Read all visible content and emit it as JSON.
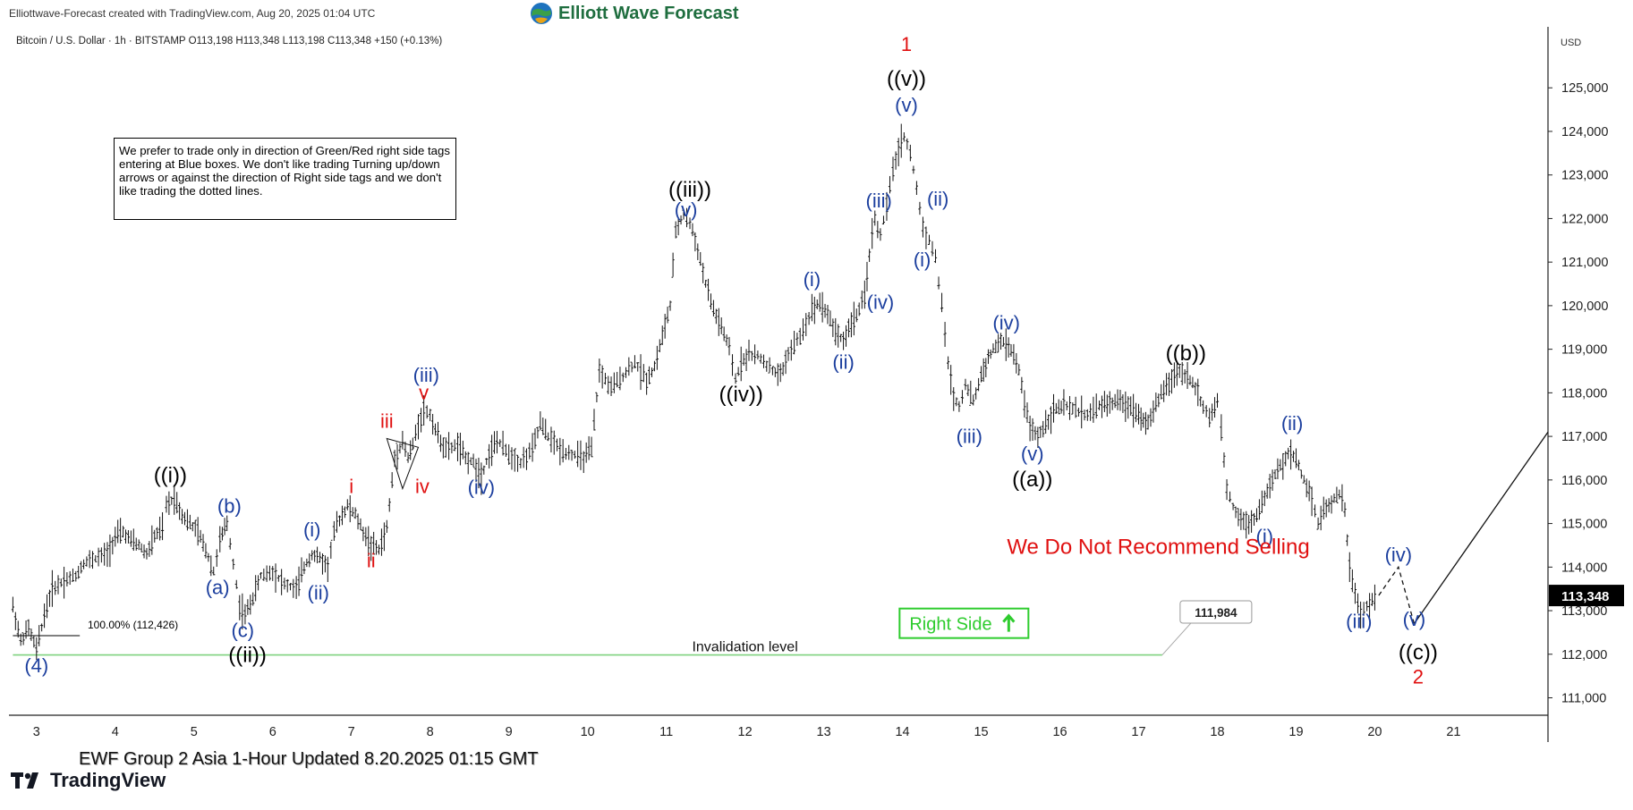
{
  "header": {
    "credit": "Elliottwave-Forecast created with TradingView.com, Aug 20, 2025 01:04 UTC",
    "brand": "Elliott Wave Forecast",
    "symbol_line": "Bitcoin / U.S. Dollar · 1h · BITSTAMP  O113,198  H113,348  L113,198  C113,348  +150 (+0.13%)",
    "currency": "USD"
  },
  "note": "We prefer to trade only in direction of Green/Red right side tags entering at Blue boxes. We don't like trading Turning up/down arrows or against the direction of Right side tags and we don't like trading the dotted lines.",
  "footer": {
    "caption": "EWF Group 2 Asia 1-Hour Updated 8.20.2025 01:15 GMT",
    "platform": "TradingView"
  },
  "colors": {
    "blue_label": "#1c3f9e",
    "red_label": "#e01010",
    "black_label": "#000000",
    "invalidation_line": "#7fd27f",
    "right_side_tag": "#2ecc2e",
    "price_tag_bg": "#000000",
    "brand_green": "#1f6e3f"
  },
  "chart_data": {
    "type": "line",
    "x_ticks": [
      "3",
      "4",
      "5",
      "6",
      "7",
      "8",
      "9",
      "10",
      "11",
      "12",
      "13",
      "14",
      "15",
      "16",
      "17",
      "18",
      "19",
      "20",
      "21"
    ],
    "y_ticks": [
      "111,000",
      "112,000",
      "113,000",
      "114,000",
      "115,000",
      "116,000",
      "117,000",
      "118,000",
      "119,000",
      "120,000",
      "121,000",
      "122,000",
      "123,000",
      "124,000",
      "125,000"
    ],
    "ylim": [
      110600,
      126400
    ],
    "xlim": [
      2.65,
      22.2
    ],
    "last_price": 113348,
    "last_price_label": "113,348",
    "price_path": [
      [
        2.7,
        113100
      ],
      [
        2.8,
        112300
      ],
      [
        2.9,
        112600
      ],
      [
        3.0,
        112100
      ],
      [
        3.1,
        112900
      ],
      [
        3.2,
        113500
      ],
      [
        3.35,
        113700
      ],
      [
        3.5,
        113800
      ],
      [
        3.6,
        114100
      ],
      [
        3.75,
        114200
      ],
      [
        3.9,
        114300
      ],
      [
        4.0,
        114700
      ],
      [
        4.1,
        114800
      ],
      [
        4.2,
        114600
      ],
      [
        4.3,
        114500
      ],
      [
        4.4,
        114300
      ],
      [
        4.5,
        114700
      ],
      [
        4.6,
        114900
      ],
      [
        4.65,
        115400
      ],
      [
        4.75,
        115600
      ],
      [
        4.85,
        115200
      ],
      [
        4.95,
        115000
      ],
      [
        5.05,
        114800
      ],
      [
        5.15,
        114400
      ],
      [
        5.25,
        113900
      ],
      [
        5.33,
        114600
      ],
      [
        5.42,
        115000
      ],
      [
        5.5,
        114100
      ],
      [
        5.58,
        113100
      ],
      [
        5.65,
        112900
      ],
      [
        5.75,
        113300
      ],
      [
        5.85,
        113800
      ],
      [
        6.0,
        113900
      ],
      [
        6.15,
        113600
      ],
      [
        6.3,
        113500
      ],
      [
        6.4,
        114000
      ],
      [
        6.5,
        114300
      ],
      [
        6.6,
        114200
      ],
      [
        6.7,
        114000
      ],
      [
        6.78,
        114800
      ],
      [
        6.85,
        115100
      ],
      [
        6.95,
        115400
      ],
      [
        7.05,
        115200
      ],
      [
        7.15,
        114800
      ],
      [
        7.25,
        114500
      ],
      [
        7.35,
        114400
      ],
      [
        7.45,
        114900
      ],
      [
        7.55,
        116500
      ],
      [
        7.65,
        116900
      ],
      [
        7.72,
        116500
      ],
      [
        7.78,
        116800
      ],
      [
        7.85,
        117300
      ],
      [
        7.92,
        117600
      ],
      [
        8.0,
        117500
      ],
      [
        8.1,
        117000
      ],
      [
        8.2,
        116700
      ],
      [
        8.35,
        116800
      ],
      [
        8.45,
        116500
      ],
      [
        8.55,
        116400
      ],
      [
        8.65,
        116100
      ],
      [
        8.75,
        116600
      ],
      [
        8.85,
        116900
      ],
      [
        9.0,
        116600
      ],
      [
        9.15,
        116400
      ],
      [
        9.3,
        116700
      ],
      [
        9.4,
        117300
      ],
      [
        9.5,
        117000
      ],
      [
        9.65,
        116700
      ],
      [
        9.8,
        116600
      ],
      [
        9.95,
        116500
      ],
      [
        10.05,
        116700
      ],
      [
        10.15,
        118500
      ],
      [
        10.3,
        118100
      ],
      [
        10.45,
        118400
      ],
      [
        10.6,
        118700
      ],
      [
        10.75,
        118300
      ],
      [
        10.85,
        118600
      ],
      [
        10.95,
        119300
      ],
      [
        11.05,
        120000
      ],
      [
        11.12,
        121700
      ],
      [
        11.22,
        122100
      ],
      [
        11.3,
        121900
      ],
      [
        11.4,
        121300
      ],
      [
        11.5,
        120500
      ],
      [
        11.6,
        119900
      ],
      [
        11.7,
        119500
      ],
      [
        11.8,
        119000
      ],
      [
        11.88,
        118300
      ],
      [
        11.95,
        118700
      ],
      [
        12.05,
        118900
      ],
      [
        12.2,
        118800
      ],
      [
        12.35,
        118500
      ],
      [
        12.45,
        118400
      ],
      [
        12.55,
        118900
      ],
      [
        12.7,
        119300
      ],
      [
        12.85,
        119900
      ],
      [
        12.95,
        120100
      ],
      [
        13.05,
        119800
      ],
      [
        13.15,
        119400
      ],
      [
        13.25,
        119200
      ],
      [
        13.35,
        119600
      ],
      [
        13.45,
        119900
      ],
      [
        13.52,
        120200
      ],
      [
        13.58,
        121200
      ],
      [
        13.65,
        122000
      ],
      [
        13.72,
        121600
      ],
      [
        13.8,
        122300
      ],
      [
        13.88,
        123100
      ],
      [
        13.95,
        123600
      ],
      [
        14.02,
        123900
      ],
      [
        14.1,
        123500
      ],
      [
        14.18,
        122700
      ],
      [
        14.26,
        121800
      ],
      [
        14.34,
        121500
      ],
      [
        14.42,
        121100
      ],
      [
        14.5,
        120000
      ],
      [
        14.58,
        118700
      ],
      [
        14.65,
        117900
      ],
      [
        14.72,
        117700
      ],
      [
        14.8,
        118200
      ],
      [
        14.9,
        117800
      ],
      [
        15.0,
        118400
      ],
      [
        15.12,
        118900
      ],
      [
        15.25,
        119200
      ],
      [
        15.38,
        119000
      ],
      [
        15.48,
        118500
      ],
      [
        15.55,
        117800
      ],
      [
        15.62,
        117200
      ],
      [
        15.72,
        117000
      ],
      [
        15.82,
        117300
      ],
      [
        15.92,
        117600
      ],
      [
        16.05,
        117700
      ],
      [
        16.2,
        117600
      ],
      [
        16.35,
        117500
      ],
      [
        16.5,
        117700
      ],
      [
        16.7,
        117800
      ],
      [
        16.9,
        117700
      ],
      [
        17.0,
        117500
      ],
      [
        17.12,
        117300
      ],
      [
        17.22,
        117700
      ],
      [
        17.32,
        118100
      ],
      [
        17.42,
        118300
      ],
      [
        17.52,
        118500
      ],
      [
        17.62,
        118400
      ],
      [
        17.72,
        118100
      ],
      [
        17.82,
        117700
      ],
      [
        17.9,
        117400
      ],
      [
        18.0,
        117800
      ],
      [
        18.05,
        117100
      ],
      [
        18.12,
        115800
      ],
      [
        18.2,
        115400
      ],
      [
        18.3,
        115100
      ],
      [
        18.4,
        115000
      ],
      [
        18.5,
        115200
      ],
      [
        18.6,
        115600
      ],
      [
        18.7,
        116000
      ],
      [
        18.8,
        116300
      ],
      [
        18.9,
        116600
      ],
      [
        19.0,
        116500
      ],
      [
        19.1,
        116000
      ],
      [
        19.2,
        115600
      ],
      [
        19.28,
        115000
      ],
      [
        19.35,
        115300
      ],
      [
        19.45,
        115500
      ],
      [
        19.55,
        115700
      ],
      [
        19.62,
        115300
      ],
      [
        19.68,
        114000
      ],
      [
        19.75,
        113400
      ],
      [
        19.82,
        112900
      ],
      [
        19.9,
        113100
      ],
      [
        20.0,
        113300
      ],
      [
        20.05,
        113348
      ]
    ],
    "projection": {
      "dashed": [
        [
          20.05,
          113350
        ],
        [
          20.3,
          114000
        ],
        [
          20.5,
          112700
        ]
      ],
      "solid": [
        [
          20.5,
          112700
        ],
        [
          22.2,
          117100
        ]
      ]
    },
    "invalidation": {
      "level": 111984,
      "level_label": "111,984",
      "label": "Invalidation level",
      "x_start": 2.7,
      "x_end": 17.3
    },
    "fib_reference": {
      "label": "100.00% (112,426)",
      "level": 112426
    },
    "warning_text": "We Do Not Recommend Selling",
    "right_side_label": "Right Side",
    "wave_labels": [
      {
        "text": "(4)",
        "x": 3.0,
        "y": 111580,
        "color": "blue"
      },
      {
        "text": "((i))",
        "x": 4.7,
        "y": 115950,
        "color": "black"
      },
      {
        "text": "(a)",
        "x": 5.3,
        "y": 113380,
        "color": "blue"
      },
      {
        "text": "(b)",
        "x": 5.45,
        "y": 115250,
        "color": "blue"
      },
      {
        "text": "(c)",
        "x": 5.62,
        "y": 112400,
        "color": "blue"
      },
      {
        "text": "((ii))",
        "x": 5.68,
        "y": 111820,
        "color": "black"
      },
      {
        "text": "(i)",
        "x": 6.5,
        "y": 114700,
        "color": "blue"
      },
      {
        "text": "(ii)",
        "x": 6.58,
        "y": 113260,
        "color": "blue"
      },
      {
        "text": "i",
        "x": 7.0,
        "y": 115700,
        "color": "red"
      },
      {
        "text": "ii",
        "x": 7.25,
        "y": 114000,
        "color": "red"
      },
      {
        "text": "iii",
        "x": 7.45,
        "y": 117200,
        "color": "red"
      },
      {
        "text": "iv",
        "x": 7.9,
        "y": 115700,
        "color": "red"
      },
      {
        "text": "v",
        "x": 7.92,
        "y": 117850,
        "color": "red"
      },
      {
        "text": "(iii)",
        "x": 7.95,
        "y": 118250,
        "color": "blue"
      },
      {
        "text": "(iv)",
        "x": 8.65,
        "y": 115680,
        "color": "blue"
      },
      {
        "text": "((iii))",
        "x": 11.3,
        "y": 122500,
        "color": "black"
      },
      {
        "text": "(v)",
        "x": 11.25,
        "y": 122050,
        "color": "blue"
      },
      {
        "text": "((iv))",
        "x": 11.95,
        "y": 117800,
        "color": "black"
      },
      {
        "text": "(i)",
        "x": 12.85,
        "y": 120450,
        "color": "blue"
      },
      {
        "text": "(ii)",
        "x": 13.25,
        "y": 118550,
        "color": "blue"
      },
      {
        "text": "(iii)",
        "x": 13.7,
        "y": 122250,
        "color": "blue"
      },
      {
        "text": "(iv)",
        "x": 13.72,
        "y": 119930,
        "color": "blue"
      },
      {
        "text": "1",
        "x": 14.05,
        "y": 125850,
        "color": "red"
      },
      {
        "text": "((v))",
        "x": 14.05,
        "y": 125050,
        "color": "black"
      },
      {
        "text": "(v)",
        "x": 14.05,
        "y": 124450,
        "color": "blue"
      },
      {
        "text": "(ii)",
        "x": 14.45,
        "y": 122300,
        "color": "blue"
      },
      {
        "text": "(i)",
        "x": 14.25,
        "y": 120900,
        "color": "blue"
      },
      {
        "text": "(iii)",
        "x": 14.85,
        "y": 116850,
        "color": "blue"
      },
      {
        "text": "(iv)",
        "x": 15.32,
        "y": 119450,
        "color": "blue"
      },
      {
        "text": "(v)",
        "x": 15.65,
        "y": 116450,
        "color": "blue"
      },
      {
        "text": "((a))",
        "x": 15.65,
        "y": 115850,
        "color": "black"
      },
      {
        "text": "((b))",
        "x": 17.6,
        "y": 118750,
        "color": "black"
      },
      {
        "text": "(ii)",
        "x": 18.95,
        "y": 117150,
        "color": "blue"
      },
      {
        "text": "(i)",
        "x": 18.6,
        "y": 114550,
        "color": "blue"
      },
      {
        "text": "(iii)",
        "x": 19.8,
        "y": 112600,
        "color": "blue"
      },
      {
        "text": "(iv)",
        "x": 20.3,
        "y": 114130,
        "color": "blue"
      },
      {
        "text": "(v)",
        "x": 20.5,
        "y": 112650,
        "color": "blue"
      },
      {
        "text": "((c))",
        "x": 20.55,
        "y": 111880,
        "color": "black"
      },
      {
        "text": "2",
        "x": 20.55,
        "y": 111330,
        "color": "red"
      }
    ]
  }
}
